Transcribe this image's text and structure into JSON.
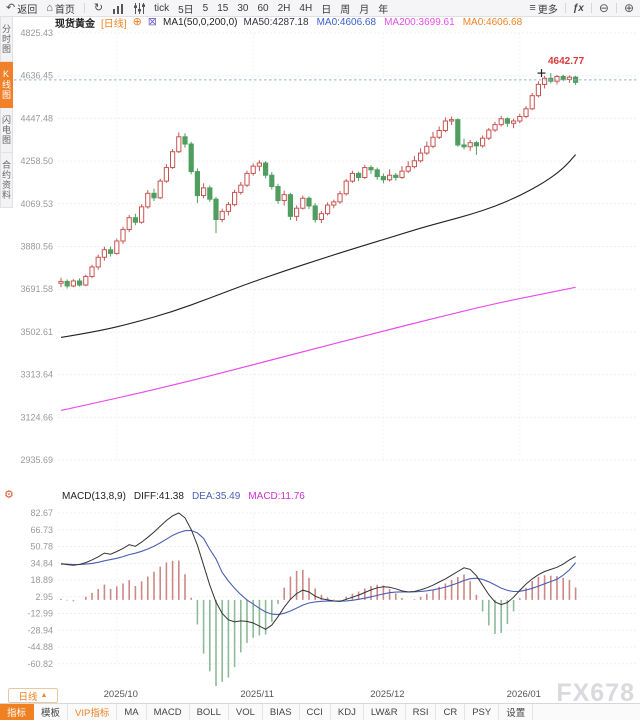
{
  "toolbar": {
    "back": "返回",
    "home": "首页",
    "intervals": [
      "tick",
      "5日",
      "5",
      "15",
      "30",
      "60",
      "2H",
      "4H",
      "日",
      "周",
      "月",
      "年"
    ],
    "more": "更多"
  },
  "icons": {
    "back": "↶",
    "home": "⌂",
    "refresh": "↻",
    "menu": "≡",
    "fx": "ƒx",
    "zoom_out": "⊖",
    "zoom_in": "⊕",
    "add": "⊕",
    "close_indicator": "⊠",
    "gear": "⚙",
    "triangle_up": "▲"
  },
  "side_tabs": [
    {
      "label": "分时图",
      "active": false
    },
    {
      "label": "K线图",
      "active": true
    },
    {
      "label": "闪电图",
      "active": false
    },
    {
      "label": "合约资料",
      "active": false
    }
  ],
  "legend": {
    "symbol": "现货黄金",
    "period": "[日线]",
    "ma_title": "MA1(50,0,200,0)",
    "items": [
      {
        "label": "MA50:4287.18",
        "color": "#333344"
      },
      {
        "label": "MA0:4606.68",
        "color": "#3a5fcd"
      },
      {
        "label": "MA200:3699.61",
        "color": "#e44ee4"
      },
      {
        "label": "MA0:4606.68",
        "color": "#f0821e"
      }
    ]
  },
  "macd_legend": {
    "title": "MACD(13,8,9)",
    "diff_label": "DIFF:41.38",
    "dea_label": "DEA:35.49",
    "macd_label": "MACD:11.76"
  },
  "price_label": "4642.77",
  "period_button": {
    "label": "日线",
    "icon": "▲"
  },
  "watermark": "FX678",
  "bottom_tabs": [
    {
      "label": "指标",
      "variant": "active"
    },
    {
      "label": "模板"
    },
    {
      "label": "VIP指标",
      "variant": "vip"
    },
    {
      "label": "MA"
    },
    {
      "label": "MACD"
    },
    {
      "label": "BOLL"
    },
    {
      "label": "VOL"
    },
    {
      "label": "BIAS"
    },
    {
      "label": "CCI"
    },
    {
      "label": "KDJ"
    },
    {
      "label": "LW&R"
    },
    {
      "label": "RSI"
    },
    {
      "label": "CR"
    },
    {
      "label": "PSY"
    },
    {
      "label": "设置"
    }
  ],
  "colors": {
    "up": "#c65551",
    "down": "#4f9e60",
    "ma50": "#222222",
    "ma200": "#e84ce8",
    "diff": "#333333",
    "dea": "#4a5fb5",
    "hist_pos": "#cc8884",
    "hist_neg": "#8cbb96",
    "dashed_price": "#8fb2d4",
    "price_label": "#d93a3a",
    "grid": "#e9e9ec",
    "axis_text": "#999999",
    "accent": "#ef8123"
  },
  "chart_data": {
    "type": "candlestick+macd",
    "title": "现货黄金 日线 (Spot Gold Daily)",
    "y_axis_labels": [
      "4825.43",
      "4636.45",
      "4447.48",
      "4258.50",
      "4069.53",
      "3880.56",
      "3691.58",
      "3502.61",
      "3313.64",
      "3124.66",
      "2935.69"
    ],
    "x_axis_labels": [
      "2025/10",
      "2025/11",
      "2025/12",
      "2026/01"
    ],
    "x_label_indices": [
      9,
      31,
      52,
      74
    ],
    "current_price": 4642.77,
    "dashed_line_price": 4618,
    "cross_marker": {
      "index": 77.5,
      "price": 4648
    },
    "ma50_end": 4287.18,
    "ma200_end": 3699.61,
    "candles": [
      [
        3718,
        3742,
        3700,
        3726
      ],
      [
        3726,
        3735,
        3695,
        3706
      ],
      [
        3706,
        3736,
        3700,
        3728
      ],
      [
        3728,
        3740,
        3703,
        3710
      ],
      [
        3710,
        3756,
        3705,
        3748
      ],
      [
        3748,
        3800,
        3740,
        3790
      ],
      [
        3790,
        3845,
        3778,
        3833
      ],
      [
        3833,
        3880,
        3818,
        3866
      ],
      [
        3866,
        3880,
        3836,
        3850
      ],
      [
        3850,
        3915,
        3845,
        3905
      ],
      [
        3905,
        3968,
        3892,
        3956
      ],
      [
        3956,
        4020,
        3944,
        4008
      ],
      [
        4008,
        4026,
        3974,
        3988
      ],
      [
        3988,
        4068,
        3982,
        4056
      ],
      [
        4056,
        4130,
        4048,
        4116
      ],
      [
        4116,
        4136,
        4082,
        4096
      ],
      [
        4096,
        4180,
        4090,
        4170
      ],
      [
        4170,
        4245,
        4162,
        4230
      ],
      [
        4230,
        4312,
        4224,
        4300
      ],
      [
        4300,
        4386,
        4294,
        4366
      ],
      [
        4366,
        4382,
        4318,
        4334
      ],
      [
        4334,
        4344,
        4200,
        4212
      ],
      [
        4212,
        4226,
        4072,
        4106
      ],
      [
        4106,
        4160,
        4094,
        4140
      ],
      [
        4140,
        4150,
        4078,
        4090
      ],
      [
        4090,
        4100,
        3940,
        4000
      ],
      [
        4000,
        4048,
        3988,
        4036
      ],
      [
        4036,
        4078,
        4018,
        4066
      ],
      [
        4066,
        4132,
        4058,
        4120
      ],
      [
        4120,
        4166,
        4110,
        4152
      ],
      [
        4152,
        4216,
        4144,
        4204
      ],
      [
        4204,
        4248,
        4194,
        4236
      ],
      [
        4236,
        4262,
        4214,
        4250
      ],
      [
        4250,
        4258,
        4182,
        4196
      ],
      [
        4196,
        4210,
        4132,
        4146
      ],
      [
        4146,
        4158,
        4070,
        4084
      ],
      [
        4084,
        4128,
        4062,
        4110
      ],
      [
        4110,
        4118,
        3998,
        4014
      ],
      [
        4014,
        4062,
        3994,
        4050
      ],
      [
        4050,
        4106,
        4044,
        4094
      ],
      [
        4094,
        4102,
        4046,
        4060
      ],
      [
        4060,
        4072,
        3986,
        4000
      ],
      [
        4000,
        4038,
        3984,
        4026
      ],
      [
        4026,
        4076,
        4018,
        4064
      ],
      [
        4064,
        4088,
        4050,
        4078
      ],
      [
        4078,
        4126,
        4070,
        4114
      ],
      [
        4114,
        4180,
        4106,
        4170
      ],
      [
        4170,
        4216,
        4162,
        4204
      ],
      [
        4204,
        4212,
        4170,
        4186
      ],
      [
        4186,
        4242,
        4180,
        4230
      ],
      [
        4230,
        4240,
        4202,
        4220
      ],
      [
        4220,
        4230,
        4176,
        4190
      ],
      [
        4190,
        4204,
        4160,
        4176
      ],
      [
        4176,
        4222,
        4168,
        4196
      ],
      [
        4196,
        4206,
        4172,
        4186
      ],
      [
        4186,
        4236,
        4180,
        4214
      ],
      [
        4214,
        4258,
        4206,
        4234
      ],
      [
        4234,
        4282,
        4226,
        4260
      ],
      [
        4260,
        4315,
        4252,
        4294
      ],
      [
        4294,
        4345,
        4286,
        4324
      ],
      [
        4324,
        4388,
        4316,
        4364
      ],
      [
        4364,
        4412,
        4356,
        4394
      ],
      [
        4394,
        4452,
        4386,
        4436
      ],
      [
        4436,
        4456,
        4418,
        4442
      ],
      [
        4442,
        4448,
        4322,
        4330
      ],
      [
        4330,
        4358,
        4310,
        4322
      ],
      [
        4322,
        4352,
        4304,
        4340
      ],
      [
        4340,
        4348,
        4286,
        4326
      ],
      [
        4326,
        4372,
        4318,
        4360
      ],
      [
        4360,
        4405,
        4352,
        4396
      ],
      [
        4396,
        4432,
        4388,
        4420
      ],
      [
        4420,
        4458,
        4412,
        4446
      ],
      [
        4446,
        4452,
        4410,
        4426
      ],
      [
        4426,
        4446,
        4404,
        4436
      ],
      [
        4436,
        4468,
        4426,
        4456
      ],
      [
        4456,
        4502,
        4448,
        4490
      ],
      [
        4490,
        4560,
        4484,
        4548
      ],
      [
        4548,
        4612,
        4540,
        4598
      ],
      [
        4598,
        4636,
        4580,
        4625
      ],
      [
        4625,
        4648,
        4602,
        4612
      ],
      [
        4612,
        4640,
        4598,
        4633
      ],
      [
        4633,
        4641,
        4612,
        4620
      ],
      [
        4620,
        4638,
        4605,
        4630
      ],
      [
        4630,
        4636,
        4596,
        4607
      ]
    ],
    "ma50_points": [
      [
        0,
        3478
      ],
      [
        6,
        3505
      ],
      [
        12,
        3545
      ],
      [
        18,
        3592
      ],
      [
        24,
        3652
      ],
      [
        30,
        3715
      ],
      [
        36,
        3772
      ],
      [
        42,
        3826
      ],
      [
        48,
        3878
      ],
      [
        54,
        3928
      ],
      [
        58,
        3962
      ],
      [
        62,
        3992
      ],
      [
        66,
        4022
      ],
      [
        70,
        4058
      ],
      [
        74,
        4105
      ],
      [
        78,
        4165
      ],
      [
        81,
        4225
      ],
      [
        83,
        4287
      ]
    ],
    "ma200_points": [
      [
        0,
        3155
      ],
      [
        10,
        3215
      ],
      [
        20,
        3280
      ],
      [
        30,
        3350
      ],
      [
        40,
        3422
      ],
      [
        50,
        3492
      ],
      [
        60,
        3562
      ],
      [
        70,
        3628
      ],
      [
        78,
        3672
      ],
      [
        83,
        3700
      ]
    ],
    "macd": {
      "y_axis_labels": [
        "82.67",
        "66.73",
        "50.78",
        "34.84",
        "18.89",
        "2.95",
        "-12.99",
        "-28.94",
        "-44.88",
        "-60.82"
      ],
      "diff": [
        34.5,
        33.6,
        33.0,
        33.8,
        35.5,
        38.0,
        41.0,
        44.5,
        43.5,
        46.0,
        49.0,
        52.5,
        51.0,
        55.0,
        59.5,
        64.5,
        70.0,
        75.5,
        80.0,
        82.7,
        78.0,
        67.0,
        52.0,
        33.0,
        14.0,
        -2.0,
        -13.0,
        -19.0,
        -21.0,
        -20.0,
        -20.5,
        -22.0,
        -25.0,
        -28.0,
        -24.0,
        -16.0,
        -7.0,
        0.5,
        6.0,
        9.3,
        7.5,
        3.5,
        1.0,
        0.0,
        -1.0,
        -1.5,
        0.5,
        2.5,
        4.5,
        7.0,
        9.5,
        11.5,
        12.5,
        12.0,
        10.5,
        8.5,
        7.5,
        8.0,
        9.5,
        11.5,
        14.0,
        17.0,
        20.0,
        23.5,
        27.0,
        30.5,
        29.0,
        23.0,
        14.0,
        5.0,
        -2.0,
        -4.5,
        -2.5,
        2.5,
        9.0,
        15.0,
        20.0,
        24.0,
        27.0,
        29.0,
        31.0,
        34.0,
        38.0,
        41.4
      ],
      "dea": [
        34.0,
        33.9,
        33.7,
        33.7,
        34.0,
        34.7,
        35.8,
        37.2,
        38.3,
        39.6,
        41.2,
        43.1,
        44.4,
        46.2,
        48.4,
        51.1,
        54.2,
        57.7,
        61.4,
        64.0,
        65.8,
        66.0,
        63.7,
        58.6,
        48.0,
        39.0,
        26.0,
        18.0,
        11.0,
        5.0,
        0.0,
        -4.0,
        -8.0,
        -11.5,
        -13.5,
        -14.0,
        -12.8,
        -10.6,
        -7.8,
        -5.0,
        -3.0,
        -1.9,
        -1.4,
        -1.2,
        -1.2,
        -1.3,
        -1.0,
        -0.4,
        0.5,
        1.6,
        2.9,
        4.3,
        5.7,
        6.8,
        7.4,
        7.6,
        7.6,
        7.7,
        8.0,
        8.6,
        9.5,
        10.7,
        12.2,
        14.0,
        16.1,
        18.4,
        20.1,
        20.6,
        19.5,
        17.2,
        14.2,
        11.2,
        9.0,
        8.0,
        8.2,
        9.3,
        11.0,
        13.1,
        15.3,
        17.5,
        19.7,
        23.5,
        28.5,
        35.5
      ]
    }
  }
}
